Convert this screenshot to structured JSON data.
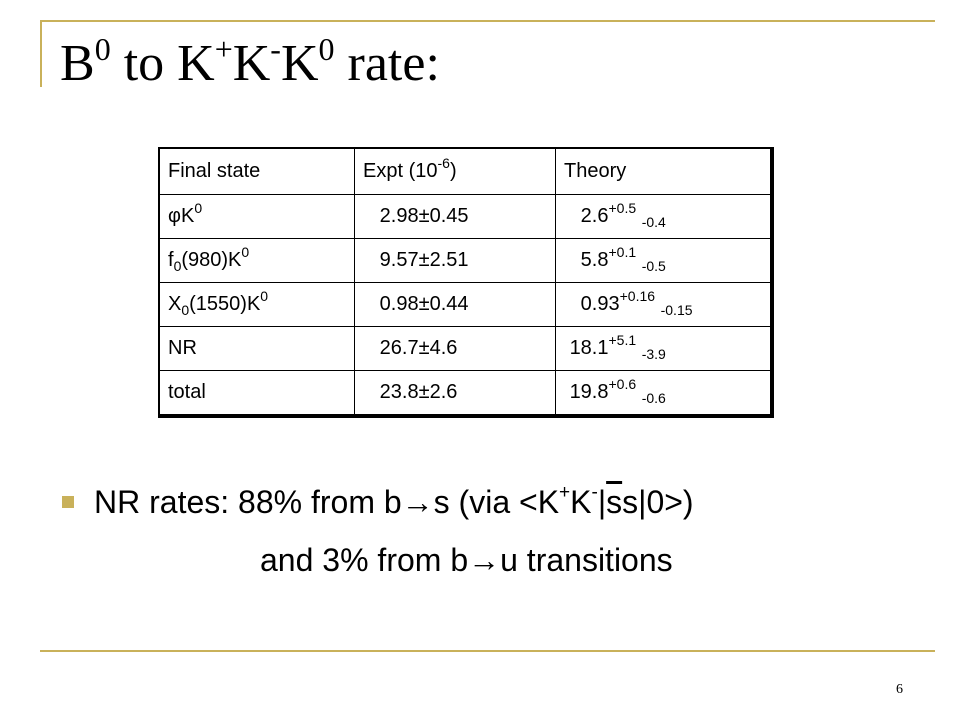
{
  "slide": {
    "title": {
      "b": "B",
      "sup1": "0",
      "to": " to K",
      "sup2": "+",
      "k": "K",
      "sup3": "-",
      "k2": "K",
      "sup4": "0",
      "rate": " rate:"
    },
    "table": {
      "headers": [
        {
          "text": "Final state"
        },
        {
          "text": " Expt (10",
          "sup": "-6",
          "after": ")"
        },
        {
          "text": " Theory"
        }
      ],
      "rows": [
        {
          "state": {
            "main": "φK",
            "sup": "0"
          },
          "expt": "2.98±0.45",
          "theory": {
            "main": "2.6",
            "sup": "+0.5",
            "sub": "-0.4"
          }
        },
        {
          "state": {
            "main": "f",
            "sub": "0",
            "rest": "(980)K",
            "sup": "0"
          },
          "expt": "9.57±2.51",
          "theory": {
            "main": "5.8",
            "sup": "+0.1",
            "sub": "-0.5"
          }
        },
        {
          "state": {
            "main": "X",
            "sub": "0",
            "rest": "(1550)K",
            "sup": "0"
          },
          "expt": "0.98±0.44",
          "theory": {
            "main": "0.93",
            "sup": "+0.16",
            "sub": "-0.15"
          }
        },
        {
          "state": {
            "main": "NR"
          },
          "expt": "26.7±4.6",
          "theory": {
            "main": "18.1",
            "sup": "+5.1",
            "sub": "-3.9"
          }
        },
        {
          "state": {
            "main": "total"
          },
          "expt": "23.8±2.6",
          "theory": {
            "main": "19.8",
            "sup": "+0.6",
            "sub": "-0.6"
          }
        }
      ]
    },
    "bullet": {
      "p1": "NR rates:  88% from b→s (via <K",
      "sup1": "+",
      "p2": "K",
      "sup2": "-",
      "p3": "|",
      "overline": "s",
      "p4": "s|0>)",
      "line2": "and 3% from b→u transitions"
    },
    "page_number": "6",
    "colors": {
      "accent": "#c9b15a"
    }
  }
}
